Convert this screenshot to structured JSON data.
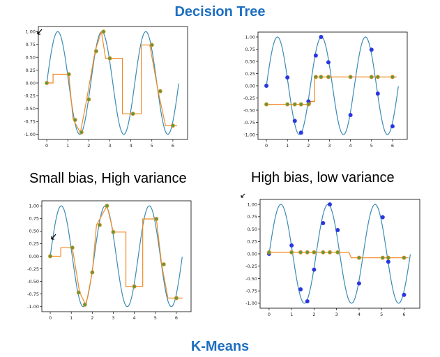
{
  "title_top": "Decision Tree",
  "title_bottom": "K-Means",
  "caption_left": "Small bias, High variance",
  "caption_right": "High bias, low variance",
  "colors": {
    "title": "#1f6fc0",
    "sine": "#3b8bb5",
    "step": "#f08a24",
    "green_point": "#5a9e3a",
    "blue_point": "#2a36e0",
    "axes": "#000000"
  },
  "chart_data": [
    {
      "type": "line",
      "panel": "decision-tree-high-variance",
      "xlim": [
        -0.4,
        6.7
      ],
      "ylim": [
        -1.1,
        1.1
      ],
      "xticks": [
        0,
        1,
        2,
        3,
        4,
        5,
        6
      ],
      "yticks": [
        1.0,
        0.75,
        0.5,
        0.25,
        0.0,
        -0.25,
        -0.5,
        -0.75,
        -1.0
      ],
      "ytick_labels": [
        "1.00",
        "0.75",
        "0.50",
        "0.25",
        "0.00",
        "-0.25",
        "-0.50",
        "-0.75",
        "-1.00"
      ],
      "sine": {
        "x_start": 0,
        "x_end": 6.28,
        "frequency": 3
      },
      "step_line": {
        "x": [
          0,
          0.3,
          0.3,
          1.05,
          1.05,
          1.25,
          1.25,
          1.6,
          1.6,
          1.9,
          1.9,
          2.3,
          2.3,
          2.6,
          2.6,
          2.8,
          2.8,
          3.6,
          3.6,
          4.5,
          4.5,
          4.9,
          4.9,
          5.3,
          5.3,
          5.65,
          5.65,
          6.2
        ],
        "y": [
          0,
          0,
          0.17,
          0.17,
          0.17,
          -0.7,
          -0.7,
          -0.97,
          -0.97,
          -0.32,
          -0.32,
          0.62,
          0.62,
          1.0,
          1.0,
          0.48,
          0.48,
          0.48,
          -0.6,
          -0.6,
          0.74,
          0.74,
          0.74,
          -0.16,
          -0.16,
          -0.83,
          -0.83,
          -0.83
        ]
      },
      "points": {
        "x": [
          0,
          1.05,
          1.35,
          1.65,
          2.0,
          2.35,
          2.7,
          3.0,
          4.1,
          5.0,
          5.4,
          6.0
        ],
        "y": [
          0,
          0.17,
          -0.72,
          -0.96,
          -0.32,
          0.62,
          1.0,
          0.48,
          -0.6,
          0.74,
          -0.16,
          -0.83
        ],
        "color": "green"
      }
    },
    {
      "type": "line",
      "panel": "decision-tree-high-bias",
      "xlim": [
        -0.4,
        6.7
      ],
      "ylim": [
        -1.1,
        1.1
      ],
      "xticks": [
        0,
        1,
        2,
        3,
        4,
        5,
        6
      ],
      "yticks": [
        1.0,
        0.75,
        0.5,
        0.25,
        0.0,
        -0.25,
        -0.5,
        -0.75,
        -1.0
      ],
      "ytick_labels": [
        "1.00",
        "0.75",
        "0.50",
        "0.25",
        "0.00",
        "-0.25",
        "-0.50",
        "-0.75",
        "-1.00"
      ],
      "sine": {
        "x_start": 0,
        "x_end": 6.28,
        "frequency": 3
      },
      "step_line": {
        "x": [
          0,
          2.1,
          2.1,
          2.3,
          2.3,
          6.2
        ],
        "y": [
          -0.38,
          -0.38,
          -0.32,
          -0.32,
          0.18,
          0.18
        ]
      },
      "points": {
        "x": [
          0,
          1.0,
          1.35,
          1.65,
          2.0,
          2.35,
          2.6,
          2.95,
          4.0,
          5.0,
          5.3,
          6.0
        ],
        "y": [
          0,
          0.17,
          -0.72,
          -0.96,
          -0.32,
          0.62,
          1.0,
          0.48,
          -0.6,
          0.74,
          -0.16,
          -0.83
        ],
        "color": "blue"
      },
      "step_points": {
        "x": [
          0,
          1.0,
          1.35,
          1.65,
          2.0,
          2.35,
          2.6,
          2.95,
          4.0,
          5.0,
          5.3,
          6.0
        ],
        "y": [
          -0.38,
          -0.38,
          -0.38,
          -0.38,
          -0.38,
          0.18,
          0.18,
          0.18,
          0.18,
          0.18,
          0.18,
          0.18
        ],
        "color": "green"
      }
    },
    {
      "type": "line",
      "panel": "kmeans-high-variance",
      "xlim": [
        -0.4,
        6.7
      ],
      "ylim": [
        -1.1,
        1.1
      ],
      "xticks": [
        0,
        1,
        2,
        3,
        4,
        5,
        6
      ],
      "yticks": [
        1.0,
        0.75,
        0.5,
        0.25,
        0.0,
        -0.25,
        -0.5,
        -0.75,
        -1.0
      ],
      "ytick_labels": [
        "1.00",
        "0.75",
        "0.50",
        "0.25",
        "0.00",
        "-0.25",
        "-0.50",
        "-0.75",
        "-1.00"
      ],
      "sine": {
        "x_start": 0,
        "x_end": 6.28,
        "frequency": 3
      },
      "step_line": {
        "x": [
          0,
          0.5,
          0.5,
          1.05,
          1.05,
          1.4,
          1.4,
          1.7,
          1.7,
          2.0,
          2.0,
          2.2,
          2.2,
          2.7,
          2.7,
          3.0,
          3.0,
          3.6,
          3.6,
          4.4,
          4.4,
          5.05,
          5.05,
          5.3,
          5.3,
          5.6,
          5.6,
          6.3
        ],
        "y": [
          0,
          0,
          0.17,
          0.17,
          0.17,
          -0.72,
          -0.72,
          -0.97,
          -0.97,
          -0.32,
          -0.32,
          0.62,
          0.62,
          1.0,
          1.0,
          0.48,
          0.48,
          0.48,
          -0.6,
          -0.6,
          0.74,
          0.74,
          0.74,
          -0.16,
          -0.16,
          -0.83,
          -0.83,
          -0.83
        ]
      },
      "points": {
        "x": [
          0,
          1.05,
          1.35,
          1.65,
          2.0,
          2.35,
          2.7,
          3.0,
          4.0,
          5.05,
          5.4,
          6.0
        ],
        "y": [
          0,
          0.17,
          -0.72,
          -0.96,
          -0.32,
          0.62,
          1.0,
          0.48,
          -0.6,
          0.74,
          -0.16,
          -0.83
        ],
        "color": "green"
      }
    },
    {
      "type": "line",
      "panel": "kmeans-high-bias",
      "xlim": [
        -0.4,
        6.7
      ],
      "ylim": [
        -1.1,
        1.1
      ],
      "xticks": [
        0,
        1,
        2,
        3,
        4,
        5,
        6
      ],
      "yticks": [
        1.0,
        0.75,
        0.5,
        0.25,
        0.0,
        -0.25,
        -0.5,
        -0.75,
        -1.0
      ],
      "ytick_labels": [
        "1.00",
        "0.75",
        "0.50",
        "0.25",
        "0.00",
        "-0.25",
        "-0.50",
        "-0.75",
        "-1.00"
      ],
      "sine": {
        "x_start": 0,
        "x_end": 6.28,
        "frequency": 3
      },
      "step_line": {
        "x": [
          0,
          3.55,
          3.65,
          6.2
        ],
        "y": [
          0.03,
          0.03,
          -0.08,
          -0.08
        ]
      },
      "points": {
        "x": [
          0,
          1.0,
          1.4,
          1.7,
          2.0,
          2.4,
          2.7,
          3.05,
          4.0,
          5.05,
          5.3,
          6.0
        ],
        "y": [
          0,
          0.17,
          -0.72,
          -0.96,
          -0.32,
          0.62,
          1.0,
          0.48,
          -0.6,
          0.74,
          -0.16,
          -0.83
        ],
        "color": "blue"
      },
      "step_points": {
        "x": [
          0,
          1.0,
          1.4,
          1.7,
          2.0,
          2.4,
          2.7,
          3.05,
          4.0,
          5.05,
          5.3,
          6.0
        ],
        "y": [
          0.03,
          0.03,
          0.03,
          0.03,
          0.03,
          0.03,
          0.03,
          0.03,
          -0.08,
          -0.08,
          -0.08,
          -0.08
        ],
        "color": "green"
      }
    }
  ]
}
